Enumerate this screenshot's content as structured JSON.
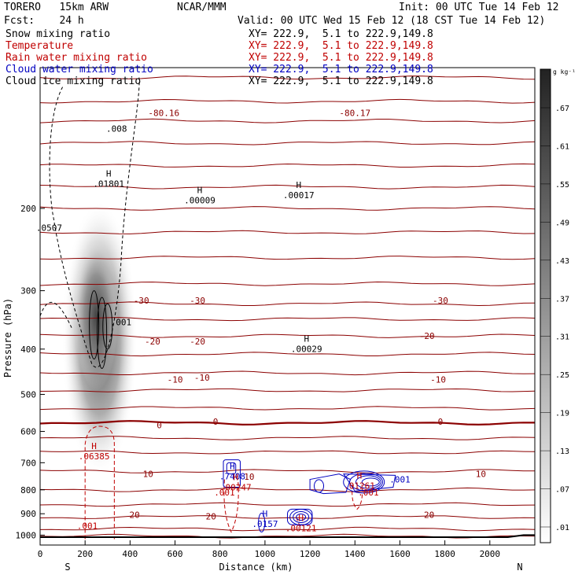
{
  "header": {
    "model": "TORERO   15km ARW",
    "org": "NCAR/MMM",
    "init": "Init: 00 UTC Tue 14 Feb 12",
    "fcst": "Fcst:    24 h",
    "valid": "Valid: 00 UTC Wed 15 Feb 12 (18 CST Tue 14 Feb 12)"
  },
  "legend": [
    {
      "label": "Snow mixing ratio",
      "xy": "XY= 222.9,  5.1 to 222.9,149.8",
      "color": "#000000"
    },
    {
      "label": "Temperature",
      "xy": "XY= 222.9,  5.1 to 222.9,149.8",
      "color": "#c00000"
    },
    {
      "label": "Rain water mixing ratio",
      "xy": "XY= 222.9,  5.1 to 222.9,149.8",
      "color": "#c00000"
    },
    {
      "label": "Cloud water mixing ratio",
      "xy": "XY= 222.9,  5.1 to 222.9,149.8",
      "color": "#0000c0"
    },
    {
      "label": "Cloud ice mixing ratio",
      "xy": "XY= 222.9,  5.1 to 222.9,149.8",
      "color": "#000000"
    }
  ],
  "chart_data": {
    "type": "cross-section",
    "xlabel": "Distance (km)",
    "ylabel": "Pressure (hPa)",
    "xlim": [
      0,
      2200
    ],
    "ylim": [
      1050,
      100
    ],
    "x_ticks": [
      0,
      200,
      400,
      600,
      800,
      1000,
      1200,
      1400,
      1600,
      1800,
      2000
    ],
    "y_ticks": [
      200,
      300,
      400,
      500,
      600,
      700,
      800,
      900,
      1000
    ],
    "endpoints": {
      "left": "S",
      "right": "N"
    },
    "colorbar": {
      "units": "g kg⁻¹",
      "ticks": [
        ".67",
        ".61",
        ".55",
        ".49",
        ".43",
        ".37",
        ".31",
        ".25",
        ".19",
        ".13",
        ".07",
        ".01"
      ]
    },
    "temperature_labels": [
      {
        "text": "-80.16",
        "x": 550,
        "p": 125
      },
      {
        "text": "-80.17",
        "x": 1400,
        "p": 125
      },
      {
        "text": "-30",
        "x": 450,
        "p": 315
      },
      {
        "text": "-30",
        "x": 700,
        "p": 315
      },
      {
        "text": "-30",
        "x": 1780,
        "p": 315
      },
      {
        "text": "-20",
        "x": 500,
        "p": 385
      },
      {
        "text": "-20",
        "x": 700,
        "p": 385
      },
      {
        "text": "-20",
        "x": 1720,
        "p": 375
      },
      {
        "text": "-10",
        "x": 600,
        "p": 465
      },
      {
        "text": "-10",
        "x": 720,
        "p": 460
      },
      {
        "text": "-10",
        "x": 1770,
        "p": 465
      },
      {
        "text": "0",
        "x": 530,
        "p": 582
      },
      {
        "text": "0",
        "x": 780,
        "p": 572
      },
      {
        "text": "0",
        "x": 1780,
        "p": 572
      },
      {
        "text": "10",
        "x": 480,
        "p": 740
      },
      {
        "text": "10",
        "x": 930,
        "p": 750
      },
      {
        "text": "10",
        "x": 1960,
        "p": 740
      },
      {
        "text": "20",
        "x": 420,
        "p": 905
      },
      {
        "text": "20",
        "x": 760,
        "p": 912
      },
      {
        "text": "20",
        "x": 1730,
        "p": 905
      }
    ],
    "extrema_labels": [
      {
        "mark": "H",
        "value": ".01801",
        "x": 305,
        "p": 175,
        "color": "#000000"
      },
      {
        "mark": "H",
        "value": ".00009",
        "x": 710,
        "p": 190,
        "color": "#000000"
      },
      {
        "mark": "H",
        "value": ".00017",
        "x": 1150,
        "p": 185,
        "color": "#000000"
      },
      {
        "mark": "H",
        "value": ".00029",
        "x": 1185,
        "p": 395,
        "color": "#000000"
      },
      {
        "mark": "H",
        "value": ".06385",
        "x": 240,
        "p": 670,
        "color": "#c00000"
      },
      {
        "mark": "H",
        "value": ".7408",
        "x": 855,
        "p": 740,
        "color": "#0000c0"
      },
      {
        "mark": "H",
        "value": ".00247",
        "x": 870,
        "p": 780,
        "color": "#c00000"
      },
      {
        "mark": "H",
        "value": ".0157",
        "x": 1000,
        "p": 935,
        "color": "#0000c0"
      },
      {
        "mark": "H",
        "value": ".00121",
        "x": 1160,
        "p": 955,
        "color": "#c00000"
      },
      {
        "mark": "H",
        "value": ".01261",
        "x": 1420,
        "p": 775,
        "color": "#c00000"
      }
    ],
    "contour_labels": [
      {
        "text": ".008",
        "x": 340,
        "p": 135,
        "color": "#000000"
      },
      {
        "text": ".0507",
        "x": 40,
        "p": 220,
        "color": "#000000"
      },
      {
        "text": ".001",
        "x": 360,
        "p": 350,
        "color": "#000000"
      },
      {
        "text": ".001",
        "x": 820,
        "p": 810,
        "color": "#c00000"
      },
      {
        "text": ".001",
        "x": 1460,
        "p": 810,
        "color": "#c00000"
      },
      {
        "text": ".001",
        "x": 210,
        "p": 955,
        "color": "#c00000"
      },
      {
        "text": ".001",
        "x": 1600,
        "p": 760,
        "color": "#0000c0"
      }
    ]
  }
}
